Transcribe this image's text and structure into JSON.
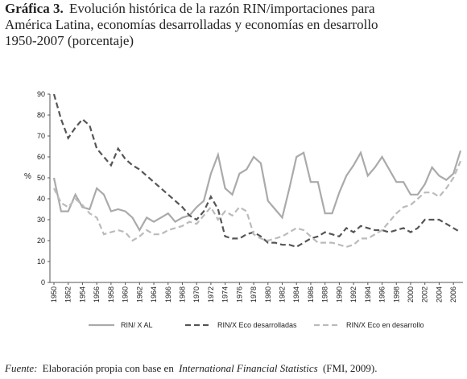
{
  "chart_data": {
    "type": "line",
    "title_label": "Gráfica 3.",
    "title": [
      "Evolución histórica de la razón RIN/importaciones para",
      "América Latina, economías desarrolladas y economías en desarrollo",
      "1950-2007 (porcentaje)"
    ],
    "ylabel": "%",
    "x": [
      1950,
      1951,
      1952,
      1953,
      1954,
      1955,
      1956,
      1957,
      1958,
      1959,
      1960,
      1961,
      1962,
      1963,
      1964,
      1965,
      1966,
      1967,
      1968,
      1969,
      1970,
      1971,
      1972,
      1973,
      1974,
      1975,
      1976,
      1977,
      1978,
      1979,
      1980,
      1981,
      1982,
      1983,
      1984,
      1985,
      1986,
      1987,
      1988,
      1989,
      1990,
      1991,
      1992,
      1993,
      1994,
      1995,
      1996,
      1997,
      1998,
      1999,
      2000,
      2001,
      2002,
      2003,
      2004,
      2005,
      2006,
      2007
    ],
    "xlim": [
      1950,
      2007
    ],
    "xticks": [
      1950,
      1952,
      1954,
      1956,
      1958,
      1960,
      1962,
      1964,
      1966,
      1968,
      1970,
      1972,
      1974,
      1976,
      1978,
      1980,
      1982,
      1984,
      1986,
      1988,
      1990,
      1992,
      1994,
      1996,
      1998,
      2000,
      2002,
      2004,
      2006
    ],
    "ylim": [
      0,
      90
    ],
    "yticks": [
      0,
      10,
      20,
      30,
      40,
      50,
      60,
      70,
      80,
      90
    ],
    "grid": false,
    "legend": "bottom",
    "series": [
      {
        "name": "RIN/ X AL",
        "color": "#aaaaaa",
        "dash": "solid",
        "values": [
          50,
          34,
          34,
          42,
          36,
          35,
          45,
          42,
          34,
          35,
          34,
          31,
          25,
          31,
          29,
          31,
          33,
          29,
          31,
          32,
          36,
          39,
          52,
          61,
          45,
          42,
          52,
          54,
          60,
          57,
          39,
          35,
          31,
          45,
          60,
          62,
          48,
          48,
          33,
          33,
          43,
          51,
          56,
          62,
          51,
          55,
          60,
          54,
          48,
          48,
          42,
          42,
          47,
          55,
          51,
          49,
          52,
          63
        ]
      },
      {
        "name": "RIN/X Eco desarrolladas",
        "color": "#555555",
        "dash": "dashed",
        "values": [
          90,
          78,
          69,
          74,
          78,
          75,
          64,
          60,
          56,
          64,
          59,
          56,
          54,
          51,
          48,
          45,
          42,
          39,
          36,
          32,
          30,
          34,
          41,
          35,
          22,
          21,
          21,
          23,
          24,
          22,
          19,
          19,
          18,
          18,
          17,
          19,
          21,
          22,
          24,
          23,
          22,
          26,
          24,
          27,
          26,
          25,
          25,
          24,
          25,
          26,
          24,
          26,
          30,
          30,
          30,
          28,
          26,
          24
        ]
      },
      {
        "name": "RIN/X Eco en desarrollo",
        "color": "#bbbbbb",
        "dash": "dashed",
        "values": [
          45,
          38,
          36,
          40,
          37,
          33,
          31,
          23,
          24,
          25,
          24,
          20,
          22,
          25,
          23,
          23,
          25,
          26,
          27,
          29,
          28,
          32,
          36,
          30,
          34,
          32,
          36,
          34,
          23,
          21,
          20,
          21,
          22,
          24,
          26,
          25,
          22,
          19,
          19,
          19,
          18,
          17,
          18,
          21,
          21,
          23,
          25,
          29,
          33,
          36,
          37,
          40,
          43,
          43,
          41,
          45,
          50,
          58
        ]
      }
    ],
    "source_label": "Fuente:",
    "source": [
      "Elaboración propia con base en",
      "International Financial Statistics",
      "(FMI, 2009)."
    ]
  }
}
